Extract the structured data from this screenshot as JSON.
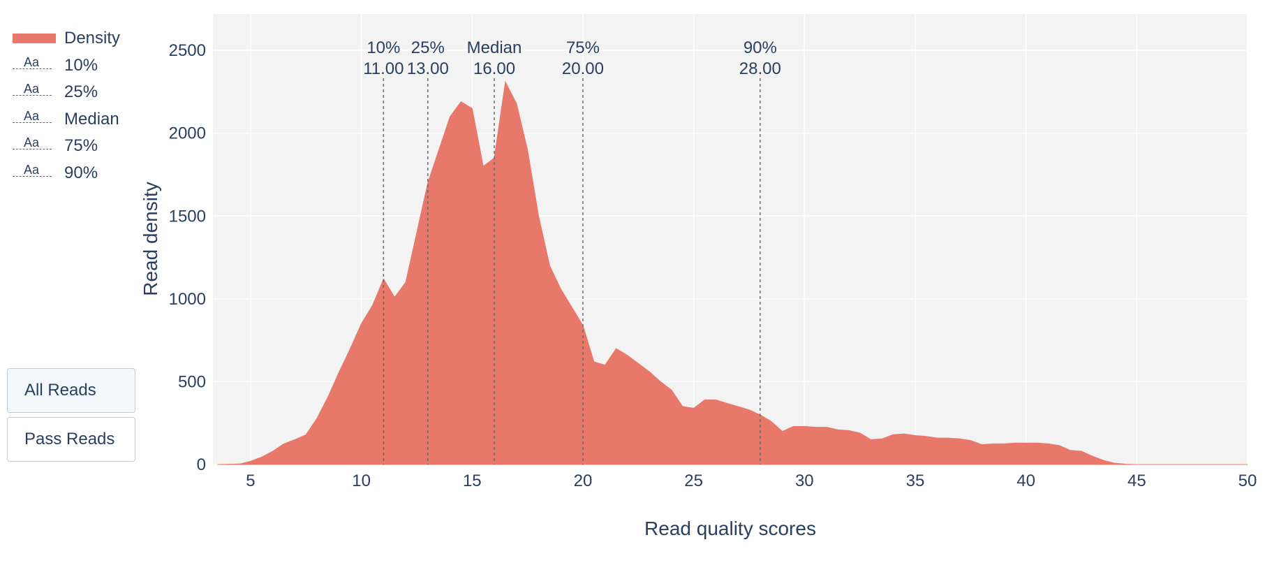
{
  "chart_data": {
    "type": "area",
    "xlabel": "Read quality scores",
    "ylabel": "Read density",
    "xlim": [
      3.3,
      50
    ],
    "ylim": [
      0,
      2720
    ],
    "x_ticks": [
      5,
      10,
      15,
      20,
      25,
      30,
      35,
      40,
      45,
      50
    ],
    "y_ticks": [
      0,
      500,
      1000,
      1500,
      2000,
      2500
    ],
    "grid": true,
    "legend_placement": "left",
    "series": [
      {
        "name": "Density",
        "color": "#e8796a",
        "x": [
          3.5,
          4.5,
          5,
          5.5,
          6,
          6.5,
          7,
          7.5,
          8,
          8.5,
          9,
          9.5,
          10,
          10.5,
          11,
          11.5,
          12,
          12.5,
          13,
          13.5,
          14,
          14.5,
          15,
          15.5,
          16,
          16.5,
          17,
          17.5,
          18,
          18.5,
          19,
          19.5,
          20,
          20.5,
          21,
          21.5,
          22,
          22.5,
          23,
          23.5,
          24,
          24.5,
          25,
          25.5,
          26,
          26.5,
          27,
          27.5,
          28,
          28.5,
          29,
          29.5,
          30,
          30.5,
          31,
          31.5,
          32,
          32.5,
          33,
          33.5,
          34,
          34.5,
          35,
          35.5,
          36,
          36.5,
          37,
          37.5,
          38,
          38.5,
          39,
          39.5,
          40,
          40.5,
          41,
          41.5,
          42,
          42.5,
          43,
          43.5,
          44,
          44.5,
          45,
          46,
          50
        ],
        "values": [
          0,
          3,
          20,
          45,
          80,
          125,
          150,
          180,
          280,
          410,
          560,
          700,
          850,
          960,
          1120,
          1010,
          1100,
          1400,
          1700,
          1900,
          2100,
          2190,
          2150,
          1800,
          1850,
          2310,
          2180,
          1900,
          1500,
          1200,
          1060,
          950,
          840,
          620,
          600,
          700,
          660,
          610,
          560,
          500,
          450,
          350,
          340,
          390,
          390,
          370,
          350,
          330,
          300,
          260,
          200,
          230,
          230,
          225,
          225,
          210,
          205,
          190,
          150,
          155,
          180,
          185,
          175,
          170,
          160,
          160,
          155,
          145,
          120,
          125,
          125,
          130,
          130,
          130,
          125,
          115,
          85,
          80,
          50,
          25,
          8,
          2,
          0,
          0,
          0
        ]
      }
    ],
    "annotations": [
      {
        "name": "10%",
        "x": 11,
        "label": "10%",
        "value_label": "11.00"
      },
      {
        "name": "25%",
        "x": 13,
        "label": "25%",
        "value_label": "13.00"
      },
      {
        "name": "Median",
        "x": 16,
        "label": "Median",
        "value_label": "16.00"
      },
      {
        "name": "75%",
        "x": 20,
        "label": "75%",
        "value_label": "20.00"
      },
      {
        "name": "90%",
        "x": 28,
        "label": "90%",
        "value_label": "28.00"
      }
    ]
  },
  "legend": {
    "items": [
      {
        "label": "Density",
        "kind": "area"
      },
      {
        "label": "10%",
        "kind": "text"
      },
      {
        "label": "25%",
        "kind": "text"
      },
      {
        "label": "Median",
        "kind": "text"
      },
      {
        "label": "75%",
        "kind": "text"
      },
      {
        "label": "90%",
        "kind": "text"
      }
    ],
    "text_symbol": "Aa"
  },
  "buttons": {
    "all_reads": "All Reads",
    "pass_reads": "Pass Reads"
  },
  "colors": {
    "density_fill": "#e8796a",
    "plot_background": "#f3f3f3",
    "grid": "#ffffff",
    "text": "#2a3f5f",
    "marker_line": "#666666"
  }
}
